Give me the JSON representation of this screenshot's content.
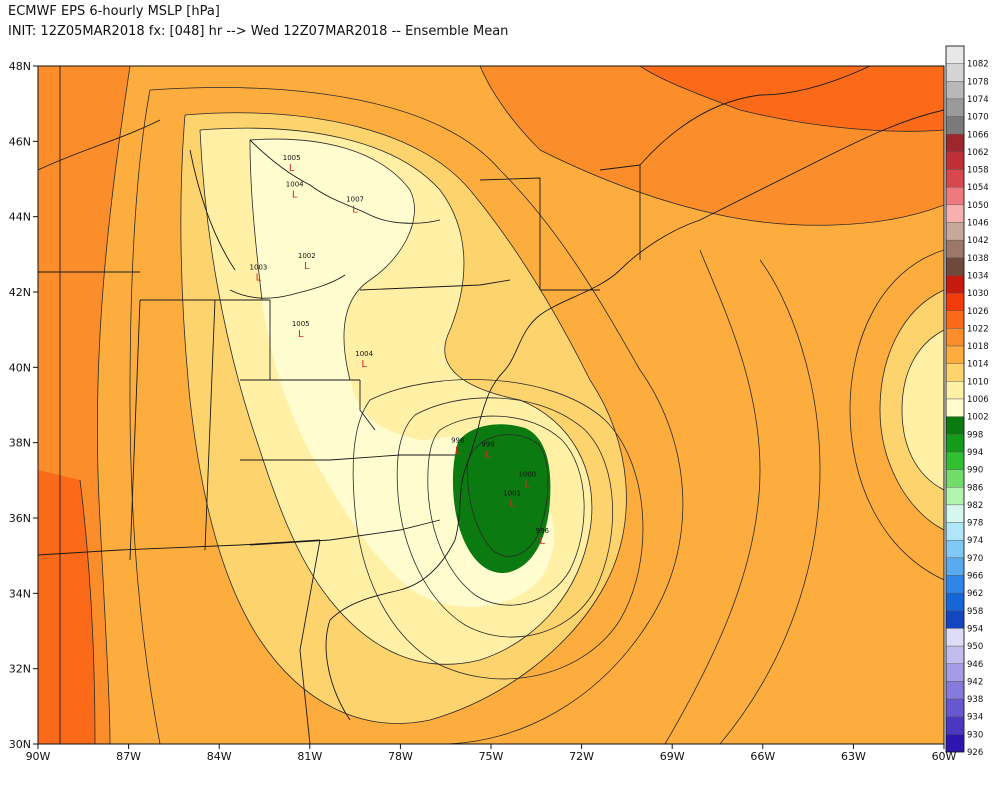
{
  "header": {
    "title": "ECMWF EPS 6-hourly MSLP [hPa]",
    "subtitle": "INIT: 12Z05MAR2018 fx: [048] hr --> Wed 12Z07MAR2018 -- Ensemble Mean"
  },
  "axes": {
    "lat_labels": [
      "48N",
      "46N",
      "44N",
      "42N",
      "40N",
      "38N",
      "36N",
      "34N",
      "32N",
      "30N"
    ],
    "lon_labels": [
      "90W",
      "87W",
      "84W",
      "81W",
      "78W",
      "75W",
      "72W",
      "69W",
      "66W",
      "63W",
      "60W"
    ]
  },
  "colorbar": {
    "levels": [
      {
        "label": "1082",
        "color": "#e8e8e8"
      },
      {
        "label": "1078",
        "color": "#d4d4d4"
      },
      {
        "label": "1074",
        "color": "#b8b8b8"
      },
      {
        "label": "1070",
        "color": "#9a9a9a"
      },
      {
        "label": "1066",
        "color": "#7a7a7a"
      },
      {
        "label": "1062",
        "color": "#a0262e"
      },
      {
        "label": "1058",
        "color": "#bf2f35"
      },
      {
        "label": "1054",
        "color": "#d6484c"
      },
      {
        "label": "1050",
        "color": "#ee7a7e"
      },
      {
        "label": "1046",
        "color": "#f6b0b0"
      },
      {
        "label": "1042",
        "color": "#c9a89c"
      },
      {
        "label": "1038",
        "color": "#9c7868"
      },
      {
        "label": "1034",
        "color": "#6e4a3c"
      },
      {
        "label": "1030",
        "color": "#c51a0c"
      },
      {
        "label": "1026",
        "color": "#f23a0a"
      },
      {
        "label": "1022",
        "color": "#fb6a18"
      },
      {
        "label": "1018",
        "color": "#fb8e2a"
      },
      {
        "label": "1014",
        "color": "#fdad3e"
      },
      {
        "label": "1010",
        "color": "#fdd36e"
      },
      {
        "label": "1006",
        "color": "#fff0a6"
      },
      {
        "label": "1002",
        "color": "#fffccf"
      },
      {
        "label": "998",
        "color": "#0b7a10"
      },
      {
        "label": "994",
        "color": "#149b1a"
      },
      {
        "label": "990",
        "color": "#2fbf2f"
      },
      {
        "label": "986",
        "color": "#72dc6a"
      },
      {
        "label": "982",
        "color": "#b2f3b0"
      },
      {
        "label": "978",
        "color": "#d4f8f0"
      },
      {
        "label": "974",
        "color": "#b0e6f8"
      },
      {
        "label": "970",
        "color": "#82c8f4"
      },
      {
        "label": "966",
        "color": "#5aaaf0"
      },
      {
        "label": "962",
        "color": "#2e86e8"
      },
      {
        "label": "958",
        "color": "#1566d6"
      },
      {
        "label": "954",
        "color": "#1446c0"
      },
      {
        "label": "950",
        "color": "#dedcf6"
      },
      {
        "label": "946",
        "color": "#c2bdef"
      },
      {
        "label": "942",
        "color": "#a49de6"
      },
      {
        "label": "938",
        "color": "#857bdc"
      },
      {
        "label": "934",
        "color": "#6658d0"
      },
      {
        "label": "930",
        "color": "#4a38c2"
      },
      {
        "label": "926",
        "color": "#2d15b0"
      }
    ]
  },
  "lows": [
    {
      "p": "998",
      "lon": -76.1,
      "lat": 38.0
    },
    {
      "p": "999",
      "lon": -75.1,
      "lat": 37.9
    },
    {
      "p": "1000",
      "lon": -73.8,
      "lat": 37.1
    },
    {
      "p": "1001",
      "lon": -74.3,
      "lat": 36.6
    },
    {
      "p": "996",
      "lon": -73.3,
      "lat": 35.6
    },
    {
      "p": "1002",
      "lon": -81.1,
      "lat": 42.9
    },
    {
      "p": "1005",
      "lon": -81.3,
      "lat": 41.1
    },
    {
      "p": "1004",
      "lon": -79.2,
      "lat": 40.3
    },
    {
      "p": "1005",
      "lon": -81.6,
      "lat": 45.5
    },
    {
      "p": "1007",
      "lon": -79.5,
      "lat": 44.4
    },
    {
      "p": "1003",
      "lon": -82.7,
      "lat": 42.6
    },
    {
      "p": "1004",
      "lon": -81.5,
      "lat": 44.8
    }
  ]
}
